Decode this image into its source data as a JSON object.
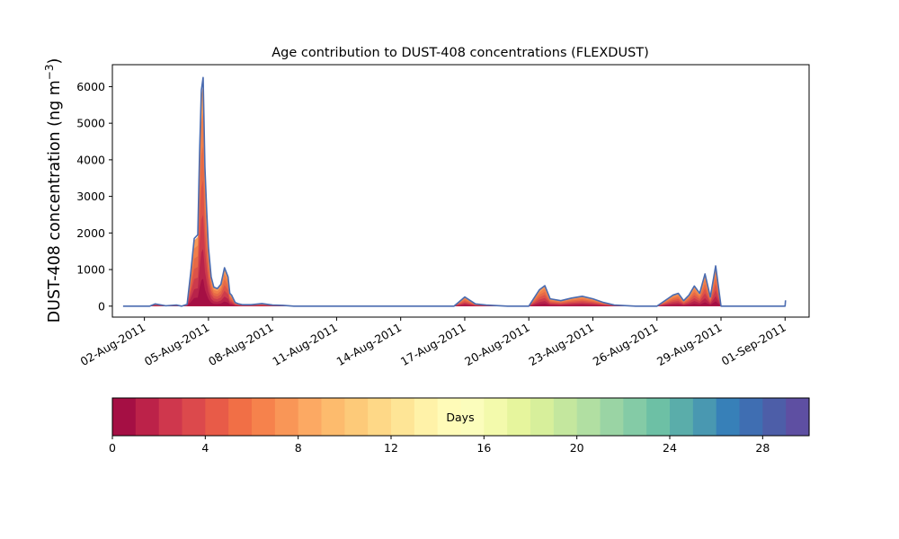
{
  "chart_data": [
    {
      "type": "area",
      "title": "Age contribution to DUST-408 concentrations (FLEXDUST)",
      "xlabel": "",
      "ylabel": "DUST-408 concentration (ng m",
      "ylabel_superscript": "−3",
      "ylabel_close": ")",
      "xlim": [
        "2011-07-31T12:00",
        "2011-09-02T03:00"
      ],
      "ylim": [
        -300,
        6600
      ],
      "yticks": [
        0,
        1000,
        2000,
        3000,
        4000,
        5000,
        6000
      ],
      "xtick_dates": [
        "2011-08-02",
        "2011-08-05",
        "2011-08-08",
        "2011-08-11",
        "2011-08-14",
        "2011-08-17",
        "2011-08-20",
        "2011-08-23",
        "2011-08-26",
        "2011-08-29",
        "2011-09-01"
      ],
      "xtick_labels": [
        "02-Aug-2011",
        "05-Aug-2011",
        "08-Aug-2011",
        "11-Aug-2011",
        "14-Aug-2011",
        "17-Aug-2011",
        "20-Aug-2011",
        "23-Aug-2011",
        "26-Aug-2011",
        "29-Aug-2011",
        "01-Sep-2011"
      ],
      "grid": false,
      "series": [
        {
          "description": "total (outline, all ages)",
          "color": "#4a6bb0",
          "x": [
            "2011-08-01T00:00",
            "2011-08-02T00:00",
            "2011-08-02T06:00",
            "2011-08-02T12:00",
            "2011-08-03T00:00",
            "2011-08-03T12:00",
            "2011-08-03T18:00",
            "2011-08-04T00:00",
            "2011-08-04T04:00",
            "2011-08-04T08:00",
            "2011-08-04T12:00",
            "2011-08-04T14:00",
            "2011-08-04T16:00",
            "2011-08-04T18:00",
            "2011-08-04T20:00",
            "2011-08-04T22:00",
            "2011-08-05T00:00",
            "2011-08-05T03:00",
            "2011-08-05T06:00",
            "2011-08-05T10:00",
            "2011-08-05T14:00",
            "2011-08-05T18:00",
            "2011-08-05T22:00",
            "2011-08-06T00:00",
            "2011-08-06T02:00",
            "2011-08-06T06:00",
            "2011-08-06T10:00",
            "2011-08-06T14:00",
            "2011-08-07T00:00",
            "2011-08-07T12:00",
            "2011-08-08T00:00",
            "2011-08-08T12:00",
            "2011-08-09T00:00",
            "2011-08-10T00:00",
            "2011-08-12T00:00",
            "2011-08-14T00:00",
            "2011-08-15T00:00",
            "2011-08-16T00:00",
            "2011-08-16T12:00",
            "2011-08-17T00:00",
            "2011-08-17T12:00",
            "2011-08-18T00:00",
            "2011-08-19T00:00",
            "2011-08-19T12:00",
            "2011-08-20T00:00",
            "2011-08-20T12:00",
            "2011-08-20T18:00",
            "2011-08-21T00:00",
            "2011-08-21T12:00",
            "2011-08-22T00:00",
            "2011-08-22T12:00",
            "2011-08-23T00:00",
            "2011-08-23T12:00",
            "2011-08-24T00:00",
            "2011-08-25T00:00",
            "2011-08-26T00:00",
            "2011-08-26T12:00",
            "2011-08-26T18:00",
            "2011-08-27T00:00",
            "2011-08-27T06:00",
            "2011-08-27T12:00",
            "2011-08-27T18:00",
            "2011-08-28T00:00",
            "2011-08-28T06:00",
            "2011-08-28T12:00",
            "2011-08-28T18:00",
            "2011-08-29T00:00",
            "2011-08-29T12:00",
            "2011-08-30T00:00",
            "2011-08-31T00:00",
            "2011-08-31T12:00",
            "2011-09-01T00:00",
            "2011-09-01T00:30"
          ],
          "y": [
            0,
            0,
            0,
            60,
            10,
            30,
            0,
            50,
            900,
            1850,
            1950,
            4200,
            5900,
            6250,
            3800,
            2600,
            1600,
            800,
            520,
            480,
            600,
            1050,
            800,
            350,
            300,
            100,
            60,
            40,
            40,
            70,
            30,
            20,
            0,
            0,
            0,
            0,
            0,
            0,
            0,
            250,
            60,
            30,
            0,
            0,
            0,
            450,
            560,
            200,
            150,
            220,
            270,
            200,
            100,
            30,
            0,
            0,
            200,
            300,
            350,
            150,
            300,
            550,
            350,
            880,
            250,
            1100,
            0,
            0,
            0,
            0,
            0,
            0,
            160
          ]
        }
      ]
    },
    {
      "type": "colorbar",
      "label": "Days",
      "range": [
        0,
        30
      ],
      "ticks": [
        0,
        4,
        8,
        12,
        16,
        20,
        24,
        28
      ],
      "bin_colors": [
        "#a50f44",
        "#bc2249",
        "#cf374d",
        "#dc494c",
        "#e85b48",
        "#f16f46",
        "#f6824c",
        "#f99657",
        "#fca963",
        "#fdbb6d",
        "#fdca79",
        "#fed887",
        "#fee596",
        "#fff2a8",
        "#fffbb8",
        "#fbfdbc",
        "#f3faac",
        "#e6f59d",
        "#d7ef9b",
        "#c4e79e",
        "#b1dfa2",
        "#9ad4a4",
        "#84cba6",
        "#6dc0a5",
        "#5aadaa",
        "#4998b1",
        "#3780b8",
        "#3f6eb2",
        "#4d5ea8",
        "#5e4fa2"
      ]
    }
  ]
}
